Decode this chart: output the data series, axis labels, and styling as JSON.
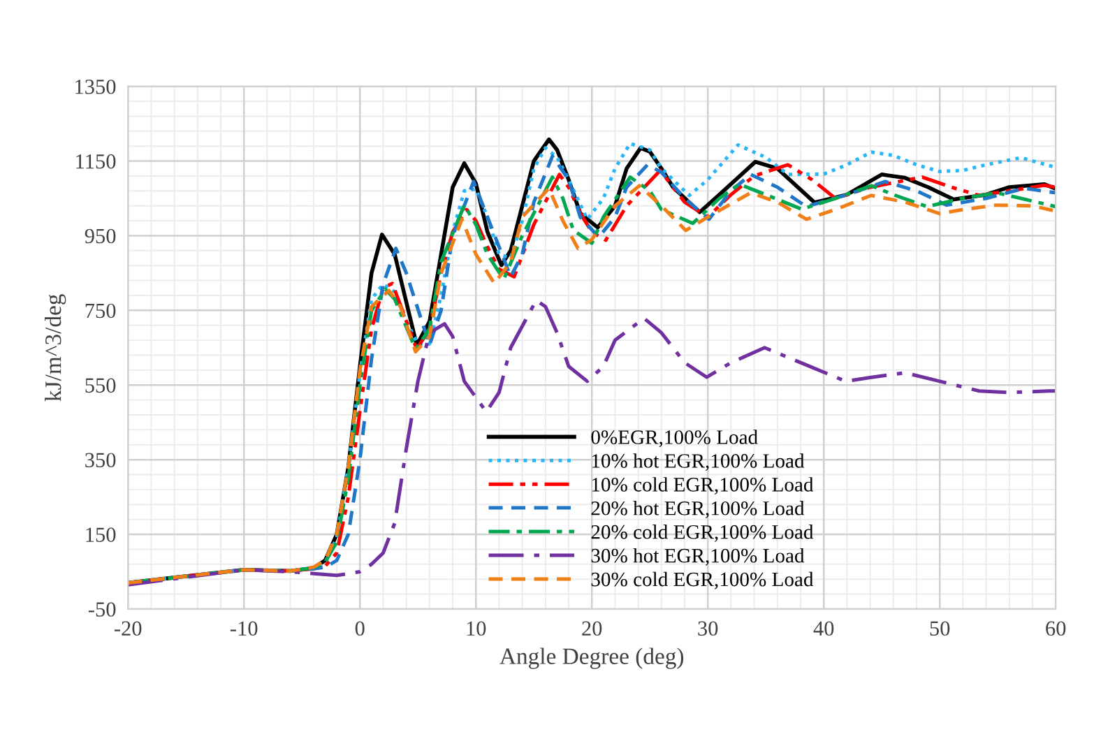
{
  "chart_data": {
    "type": "line",
    "xlabel": "Angle Degree (deg)",
    "ylabel": "kJ/m^3/deg",
    "xlim": [
      -20,
      60
    ],
    "ylim": [
      -50,
      1350
    ],
    "xticks": [
      -20,
      -10,
      0,
      10,
      20,
      30,
      40,
      50,
      60
    ],
    "yticks": [
      -50,
      150,
      350,
      550,
      750,
      950,
      1150,
      1350
    ],
    "grid": true,
    "legend": "bottom",
    "marker": "none",
    "series": [
      {
        "name": "0%EGR,100% Load",
        "color": "#000000",
        "line_style": "solid",
        "x": [
          -20,
          -15,
          -10,
          -6,
          -4,
          -3,
          -2,
          -1,
          0,
          1,
          1.9,
          3,
          4.9,
          6,
          7,
          8,
          9,
          10,
          11,
          12.2,
          13,
          14,
          15,
          16.3,
          17,
          18,
          19,
          20.5,
          22,
          23,
          24.2,
          25,
          26,
          27,
          29.3,
          31,
          34.1,
          36,
          39.2,
          42,
          45,
          47,
          49,
          51.2,
          54,
          56,
          59,
          60
        ],
        "values": [
          20,
          38,
          55,
          52,
          60,
          80,
          150,
          330,
          600,
          850,
          953,
          900,
          657,
          720,
          900,
          1080,
          1144,
          1090,
          960,
          871,
          910,
          1030,
          1150,
          1208,
          1180,
          1100,
          1010,
          972,
          1030,
          1130,
          1185,
          1175,
          1130,
          1080,
          1013,
          1060,
          1148,
          1130,
          1039,
          1060,
          1114,
          1105,
          1080,
          1047,
          1060,
          1080,
          1088,
          1076
        ]
      },
      {
        "name": "10% hot EGR,100% Load",
        "color": "#29b6f6",
        "line_style": "dotted",
        "x": [
          -20,
          -15,
          -10,
          -6,
          -4,
          -3,
          -2,
          -1,
          0,
          1,
          2,
          3,
          4,
          5,
          6,
          7,
          8,
          9,
          10,
          11,
          12,
          13,
          14,
          15,
          16,
          17,
          18,
          19.6,
          21,
          22,
          23.3,
          25,
          26,
          28.4,
          30,
          32.6,
          35,
          36.9,
          40,
          42,
          44.1,
          46,
          48,
          50,
          52,
          54,
          57,
          60
        ],
        "values": [
          20,
          38,
          55,
          52,
          60,
          75,
          140,
          330,
          580,
          780,
          820,
          800,
          720,
          660,
          660,
          790,
          960,
          1070,
          1075,
          1000,
          900,
          890,
          990,
          1130,
          1185,
          1160,
          1100,
          994,
          1050,
          1130,
          1197,
          1180,
          1130,
          1058,
          1100,
          1193,
          1160,
          1114,
          1115,
          1140,
          1174,
          1165,
          1140,
          1122,
          1125,
          1140,
          1159,
          1133
        ]
      },
      {
        "name": "10% cold EGR,100% Load",
        "color": "#ff0000",
        "line_style": "dashdotdot",
        "x": [
          -20,
          -15,
          -10,
          -6,
          -4,
          -3,
          -2,
          -1,
          0,
          1,
          2,
          2.8,
          4.9,
          6,
          7,
          8,
          9.2,
          10,
          11,
          12,
          13.3,
          15,
          17.2,
          18,
          19,
          20,
          21.2,
          23,
          25.9,
          27,
          28,
          30,
          32,
          34,
          36.9,
          39,
          41,
          44,
          48.5,
          51,
          53.4,
          56,
          59,
          60
        ],
        "values": [
          20,
          38,
          55,
          52,
          58,
          65,
          100,
          250,
          480,
          700,
          810,
          822,
          646,
          700,
          850,
          960,
          1020,
          990,
          920,
          860,
          840,
          980,
          1114,
          1080,
          1010,
          960,
          938,
          1030,
          1125,
          1080,
          1040,
          1000,
          1060,
          1110,
          1140,
          1100,
          1050,
          1080,
          1107,
          1080,
          1058,
          1070,
          1085,
          1080
        ]
      },
      {
        "name": "20% hot EGR,100% Load",
        "color": "#1f77c8",
        "line_style": "dashed",
        "x": [
          -20,
          -15,
          -10,
          -6,
          -4,
          -3,
          -2,
          -1,
          0,
          1,
          2,
          3.1,
          4,
          6,
          7,
          8,
          9.8,
          11,
          13,
          14,
          15,
          16.6,
          18,
          19,
          20.6,
          22,
          23,
          24.8,
          26,
          28,
          30.1,
          32,
          33.7,
          36,
          38.5,
          42,
          45.3,
          48,
          50.6,
          54,
          57.3,
          60
        ],
        "values": [
          20,
          38,
          55,
          52,
          58,
          62,
          80,
          150,
          350,
          620,
          820,
          916,
          850,
          657,
          750,
          950,
          1095,
          1000,
          840,
          900,
          1040,
          1163,
          1100,
          1000,
          946,
          1000,
          1080,
          1140,
          1120,
          1050,
          994,
          1070,
          1114,
          1080,
          1028,
          1060,
          1095,
          1070,
          1032,
          1050,
          1077,
          1065
        ]
      },
      {
        "name": "20% cold EGR,100% Load",
        "color": "#00a650",
        "line_style": "dashdot",
        "x": [
          -20,
          -15,
          -10,
          -6,
          -4,
          -3,
          -2,
          -1,
          0,
          1,
          2.2,
          3,
          4.8,
          6,
          7,
          9,
          10,
          11,
          12.4,
          14,
          16.6,
          17.5,
          18.4,
          20,
          21,
          23.3,
          25,
          26,
          28.7,
          31,
          32.7,
          35,
          38.1,
          41,
          44.1,
          46,
          48.9,
          52,
          54.9,
          57,
          60
        ],
        "values": [
          20,
          38,
          55,
          52,
          60,
          75,
          130,
          300,
          550,
          750,
          807,
          780,
          646,
          700,
          880,
          1032,
          980,
          900,
          833,
          950,
          1107,
          1050,
          965,
          930,
          1000,
          1107,
          1070,
          1020,
          983,
          1050,
          1088,
          1060,
          1021,
          1050,
          1084,
          1060,
          1028,
          1050,
          1065,
          1050,
          1028
        ]
      },
      {
        "name": "30% hot EGR,100% Load",
        "color": "#7030a0",
        "line_style": "longdashdot",
        "x": [
          -20,
          -15,
          -10,
          -6,
          -4,
          -2,
          0,
          1,
          2,
          3,
          4,
          5,
          6,
          7.3,
          8,
          9,
          10.9,
          12,
          13,
          15.2,
          16,
          17,
          18,
          19.6,
          21,
          22,
          24.5,
          26,
          28,
          29.9,
          32,
          34.9,
          38,
          41.9,
          44,
          47,
          50,
          53.4,
          56,
          59.4,
          60
        ],
        "values": [
          15,
          35,
          55,
          50,
          45,
          40,
          50,
          70,
          100,
          180,
          380,
          560,
          690,
          714,
          680,
          560,
          478,
          530,
          650,
          777,
          760,
          690,
          600,
          560,
          600,
          670,
          729,
          690,
          610,
          571,
          610,
          650,
          610,
          560,
          570,
          583,
          560,
          534,
          530,
          534,
          534
        ]
      },
      {
        "name": "30% cold EGR,100% Load",
        "color": "#f07f17",
        "line_style": "dashed",
        "x": [
          -20,
          -15,
          -10,
          -6,
          -4,
          -3,
          -2,
          -1,
          0,
          1,
          2.5,
          3.5,
          4.8,
          6,
          7,
          8.8,
          10,
          11.6,
          13,
          14,
          16.3,
          17.5,
          18.8,
          20,
          22,
          24.1,
          26,
          28.1,
          30,
          33.7,
          36,
          38.5,
          41,
          44.1,
          47,
          50,
          52,
          54.9,
          58,
          60
        ],
        "values": [
          20,
          38,
          55,
          52,
          62,
          80,
          150,
          330,
          590,
          760,
          803,
          760,
          639,
          680,
          850,
          994,
          900,
          822,
          880,
          1000,
          1077,
          990,
          916,
          940,
          1030,
          1084,
          1030,
          964,
          1000,
          1065,
          1040,
          994,
          1020,
          1058,
          1040,
          1009,
          1020,
          1032,
          1030,
          1016
        ]
      }
    ]
  }
}
